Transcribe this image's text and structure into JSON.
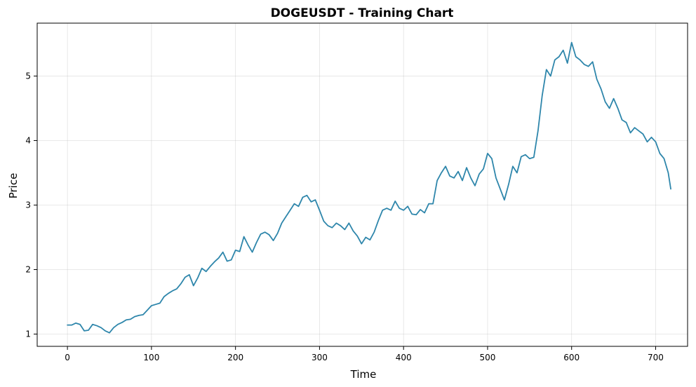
{
  "chart_data": {
    "type": "line",
    "title": "DOGEUSDT - Training Chart",
    "xlabel": "Time",
    "ylabel": "Price",
    "xlim": [
      -36,
      738
    ],
    "ylim": [
      0.81,
      5.82
    ],
    "grid": true,
    "xticks": [
      0,
      100,
      200,
      300,
      400,
      500,
      600,
      700
    ],
    "yticks": [
      1,
      2,
      3,
      4,
      5
    ],
    "series": [
      {
        "color": "#2e86ab",
        "points": [
          [
            0,
            1.14
          ],
          [
            5,
            1.14
          ],
          [
            10,
            1.17
          ],
          [
            15,
            1.15
          ],
          [
            20,
            1.05
          ],
          [
            25,
            1.06
          ],
          [
            30,
            1.15
          ],
          [
            35,
            1.13
          ],
          [
            40,
            1.1
          ],
          [
            45,
            1.05
          ],
          [
            50,
            1.02
          ],
          [
            55,
            1.1
          ],
          [
            60,
            1.15
          ],
          [
            65,
            1.18
          ],
          [
            70,
            1.22
          ],
          [
            75,
            1.23
          ],
          [
            80,
            1.27
          ],
          [
            85,
            1.29
          ],
          [
            90,
            1.3
          ],
          [
            95,
            1.37
          ],
          [
            100,
            1.44
          ],
          [
            105,
            1.46
          ],
          [
            110,
            1.48
          ],
          [
            115,
            1.58
          ],
          [
            120,
            1.63
          ],
          [
            125,
            1.67
          ],
          [
            130,
            1.7
          ],
          [
            135,
            1.78
          ],
          [
            140,
            1.88
          ],
          [
            145,
            1.92
          ],
          [
            150,
            1.75
          ],
          [
            155,
            1.87
          ],
          [
            160,
            2.02
          ],
          [
            165,
            1.97
          ],
          [
            170,
            2.05
          ],
          [
            175,
            2.12
          ],
          [
            180,
            2.18
          ],
          [
            185,
            2.27
          ],
          [
            190,
            2.13
          ],
          [
            195,
            2.15
          ],
          [
            200,
            2.3
          ],
          [
            205,
            2.28
          ],
          [
            210,
            2.51
          ],
          [
            215,
            2.38
          ],
          [
            220,
            2.27
          ],
          [
            225,
            2.42
          ],
          [
            230,
            2.55
          ],
          [
            235,
            2.58
          ],
          [
            240,
            2.54
          ],
          [
            245,
            2.45
          ],
          [
            250,
            2.56
          ],
          [
            255,
            2.72
          ],
          [
            260,
            2.82
          ],
          [
            265,
            2.92
          ],
          [
            270,
            3.02
          ],
          [
            275,
            2.98
          ],
          [
            280,
            3.12
          ],
          [
            285,
            3.15
          ],
          [
            290,
            3.05
          ],
          [
            295,
            3.08
          ],
          [
            300,
            2.92
          ],
          [
            305,
            2.75
          ],
          [
            310,
            2.68
          ],
          [
            315,
            2.65
          ],
          [
            320,
            2.72
          ],
          [
            325,
            2.68
          ],
          [
            330,
            2.62
          ],
          [
            335,
            2.72
          ],
          [
            340,
            2.6
          ],
          [
            345,
            2.52
          ],
          [
            350,
            2.4
          ],
          [
            355,
            2.5
          ],
          [
            360,
            2.46
          ],
          [
            365,
            2.58
          ],
          [
            370,
            2.76
          ],
          [
            375,
            2.92
          ],
          [
            380,
            2.95
          ],
          [
            385,
            2.92
          ],
          [
            390,
            3.06
          ],
          [
            395,
            2.95
          ],
          [
            400,
            2.92
          ],
          [
            405,
            2.98
          ],
          [
            410,
            2.86
          ],
          [
            415,
            2.85
          ],
          [
            420,
            2.93
          ],
          [
            425,
            2.88
          ],
          [
            430,
            3.02
          ],
          [
            435,
            3.02
          ],
          [
            440,
            3.38
          ],
          [
            445,
            3.5
          ],
          [
            450,
            3.6
          ],
          [
            455,
            3.45
          ],
          [
            460,
            3.42
          ],
          [
            465,
            3.52
          ],
          [
            470,
            3.38
          ],
          [
            475,
            3.58
          ],
          [
            480,
            3.42
          ],
          [
            485,
            3.3
          ],
          [
            490,
            3.48
          ],
          [
            495,
            3.56
          ],
          [
            500,
            3.8
          ],
          [
            505,
            3.72
          ],
          [
            510,
            3.42
          ],
          [
            515,
            3.25
          ],
          [
            520,
            3.08
          ],
          [
            525,
            3.32
          ],
          [
            530,
            3.6
          ],
          [
            535,
            3.5
          ],
          [
            540,
            3.75
          ],
          [
            545,
            3.78
          ],
          [
            550,
            3.72
          ],
          [
            555,
            3.74
          ],
          [
            560,
            4.15
          ],
          [
            565,
            4.7
          ],
          [
            570,
            5.1
          ],
          [
            575,
            5.0
          ],
          [
            580,
            5.25
          ],
          [
            585,
            5.3
          ],
          [
            590,
            5.4
          ],
          [
            595,
            5.2
          ],
          [
            600,
            5.52
          ],
          [
            605,
            5.3
          ],
          [
            610,
            5.25
          ],
          [
            615,
            5.18
          ],
          [
            620,
            5.15
          ],
          [
            625,
            5.22
          ],
          [
            630,
            4.95
          ],
          [
            635,
            4.8
          ],
          [
            640,
            4.6
          ],
          [
            645,
            4.5
          ],
          [
            650,
            4.65
          ],
          [
            655,
            4.5
          ],
          [
            660,
            4.32
          ],
          [
            665,
            4.28
          ],
          [
            670,
            4.12
          ],
          [
            675,
            4.2
          ],
          [
            680,
            4.15
          ],
          [
            685,
            4.1
          ],
          [
            690,
            3.98
          ],
          [
            695,
            4.05
          ],
          [
            700,
            3.98
          ],
          [
            705,
            3.8
          ],
          [
            710,
            3.72
          ],
          [
            715,
            3.5
          ],
          [
            718,
            3.25
          ]
        ]
      }
    ]
  }
}
